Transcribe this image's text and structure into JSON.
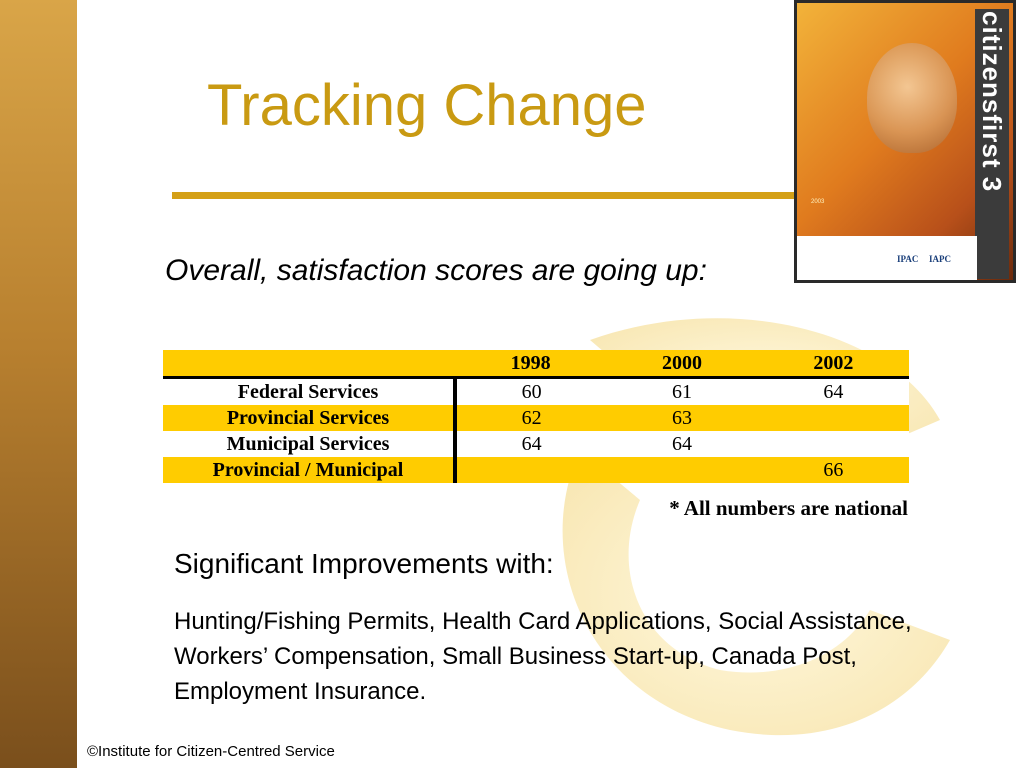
{
  "slide": {
    "title": "Tracking Change",
    "subtitle": "Overall, satisfaction scores are going up:",
    "note": "* All numbers are national",
    "significant_heading": "Significant Improvements with:",
    "significant_body": "Hunting/Fishing Permits, Health Card Applications, Social Assistance, Workers’ Compensation, Small Business Start-up, Canada Post, Employment Insurance.",
    "footer": "©Institute for Citizen-Centred Service",
    "accent_color": "#c99a12",
    "table_highlight_color": "#ffcc00"
  },
  "cover": {
    "brand": "citizensfirst 3",
    "year": "2003",
    "logo_ipac": "IPAC",
    "logo_iapc": "IAPC",
    "icon": "report-cover-image"
  },
  "table": {
    "columns": [
      "",
      "1998",
      "2000",
      "2002"
    ],
    "rows": [
      {
        "label": "Federal Services",
        "v1998": "60",
        "v2000": "61",
        "v2002": "64"
      },
      {
        "label": "Provincial Services",
        "v1998": "62",
        "v2000": "63",
        "v2002": ""
      },
      {
        "label": "Municipal Services",
        "v1998": "64",
        "v2000": "64",
        "v2002": ""
      },
      {
        "label": "Provincial / Municipal",
        "v1998": "",
        "v2000": "",
        "v2002": "66"
      }
    ]
  }
}
